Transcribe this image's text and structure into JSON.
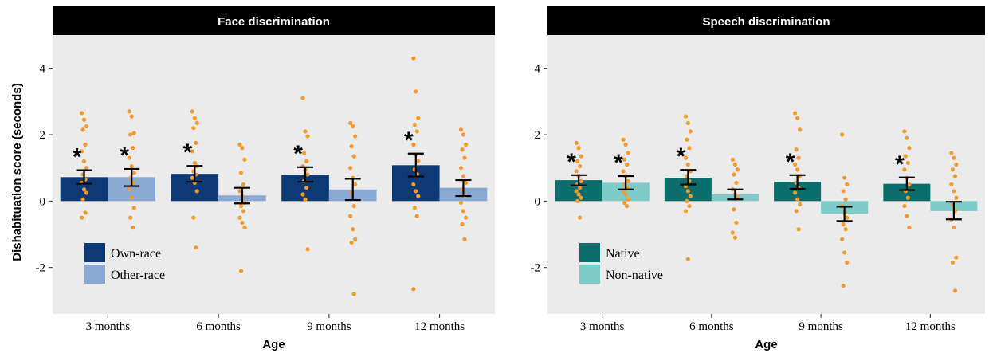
{
  "chart_data": [
    {
      "type": "bar",
      "title": "Face discrimination",
      "xlabel": "Age",
      "ylabel": "Dishabituation score (seconds)",
      "ylim": [
        -3.4,
        5.0
      ],
      "yticks": [
        -2,
        0,
        2,
        4
      ],
      "categories": [
        "3 months",
        "6 months",
        "9 months",
        "12 months"
      ],
      "legend_position": "bottom-left",
      "grid": false,
      "series": [
        {
          "name": "Own-race",
          "color": "#0d3a75",
          "values": [
            0.72,
            0.82,
            0.8,
            1.08
          ],
          "error": [
            [
              0.52,
              0.93
            ],
            [
              0.58,
              1.06
            ],
            [
              0.58,
              1.02
            ],
            [
              0.74,
              1.43
            ]
          ],
          "points": [
            [
              2.65,
              2.45,
              2.25,
              2.15,
              1.7,
              1.5,
              1.2,
              1.0,
              0.8,
              0.65,
              0.55,
              0.35,
              0.25,
              0.05,
              -0.35,
              -0.5
            ],
            [
              2.7,
              2.5,
              2.35,
              2.2,
              1.75,
              1.5,
              1.15,
              1.05,
              0.9,
              0.8,
              0.7,
              0.55,
              0.3,
              -0.5,
              -1.4
            ],
            [
              3.1,
              2.1,
              1.95,
              1.45,
              1.2,
              1.05,
              0.95,
              0.8,
              0.6,
              0.4,
              0.2,
              0.05,
              -1.45
            ],
            [
              4.3,
              3.3,
              2.5,
              2.3,
              2.1,
              1.7,
              1.4,
              1.2,
              0.95,
              0.8,
              0.5,
              0.3,
              0.15,
              -0.2,
              -0.45,
              -2.65
            ]
          ]
        },
        {
          "name": "Other-race",
          "color": "#89a9d4",
          "values": [
            0.72,
            0.17,
            0.35,
            0.4
          ],
          "error": [
            [
              0.45,
              0.97
            ],
            [
              -0.07,
              0.4
            ],
            [
              0.03,
              0.67
            ],
            [
              0.15,
              0.63
            ]
          ],
          "points": [
            [
              2.7,
              2.55,
              2.05,
              2.0,
              1.6,
              1.3,
              1.05,
              0.85,
              0.7,
              0.55,
              0.35,
              0.1,
              -0.2,
              -0.5,
              -0.8
            ],
            [
              1.7,
              1.6,
              1.25,
              0.85,
              0.5,
              0.3,
              0.15,
              -0.05,
              -0.15,
              -0.3,
              -0.5,
              -0.65,
              -0.8,
              -2.1
            ],
            [
              2.35,
              2.25,
              1.95,
              1.65,
              1.35,
              1.0,
              0.7,
              0.5,
              0.25,
              -0.15,
              -0.45,
              -0.85,
              -1.15,
              -1.25,
              -2.8
            ],
            [
              2.15,
              2.0,
              1.7,
              1.55,
              1.3,
              1.0,
              0.75,
              0.55,
              0.35,
              0.15,
              -0.05,
              -0.3,
              -0.5,
              -0.7,
              -1.15
            ]
          ]
        }
      ],
      "significance": [
        [
          "*",
          "*"
        ],
        [
          "*",
          ""
        ],
        [
          "*",
          ""
        ],
        [
          "*",
          ""
        ]
      ]
    },
    {
      "type": "bar",
      "title": "Speech discrimination",
      "xlabel": "Age",
      "ylabel": "",
      "ylim": [
        -3.4,
        5.0
      ],
      "yticks": [
        -2,
        0,
        2,
        4
      ],
      "categories": [
        "3 months",
        "6 months",
        "9 months",
        "12 months"
      ],
      "legend_position": "bottom-left",
      "grid": false,
      "series": [
        {
          "name": "Native",
          "color": "#0a6e6c",
          "values": [
            0.63,
            0.7,
            0.58,
            0.52
          ],
          "error": [
            [
              0.47,
              0.78
            ],
            [
              0.5,
              0.94
            ],
            [
              0.37,
              0.78
            ],
            [
              0.33,
              0.71
            ]
          ],
          "points": [
            [
              1.75,
              1.6,
              1.35,
              1.2,
              1.05,
              0.9,
              0.75,
              0.6,
              0.5,
              0.4,
              0.3,
              0.2,
              0.1,
              0.0,
              -0.5
            ],
            [
              2.55,
              2.35,
              2.1,
              1.85,
              1.6,
              1.3,
              1.1,
              0.9,
              0.75,
              0.6,
              0.45,
              0.3,
              0.15,
              0.0,
              -0.15,
              -0.3,
              -1.75
            ],
            [
              2.65,
              2.5,
              2.15,
              1.55,
              1.3,
              1.1,
              0.95,
              0.75,
              0.55,
              0.4,
              0.25,
              0.05,
              -0.1,
              -0.3,
              -0.85
            ],
            [
              2.1,
              1.9,
              1.6,
              1.35,
              1.15,
              0.95,
              0.7,
              0.5,
              0.3,
              0.1,
              -0.15,
              -0.45,
              -0.8
            ]
          ]
        },
        {
          "name": "Non-native",
          "color": "#7ccbc9",
          "values": [
            0.55,
            0.2,
            -0.38,
            -0.3
          ],
          "error": [
            [
              0.35,
              0.75
            ],
            [
              0.05,
              0.35
            ],
            [
              -0.6,
              -0.17
            ],
            [
              -0.55,
              -0.02
            ]
          ],
          "points": [
            [
              1.85,
              1.7,
              1.45,
              1.25,
              1.1,
              0.9,
              0.75,
              0.6,
              0.5,
              0.4,
              0.3,
              0.2,
              0.05,
              -0.05,
              -0.15
            ],
            [
              1.25,
              1.1,
              0.95,
              0.8,
              0.55,
              0.35,
              0.2,
              0.1,
              -0.25,
              -0.65,
              -0.95,
              -1.1
            ],
            [
              2.0,
              0.7,
              0.5,
              0.3,
              0.05,
              -0.15,
              -0.35,
              -0.5,
              -0.7,
              -0.85,
              -1.15,
              -1.55,
              -1.85,
              -2.55
            ],
            [
              1.45,
              1.3,
              1.1,
              0.95,
              0.75,
              0.5,
              0.3,
              0.1,
              -0.1,
              -0.3,
              -0.55,
              -0.8,
              -1.7,
              -1.85,
              -2.7
            ]
          ]
        }
      ],
      "significance": [
        [
          "*",
          "*"
        ],
        [
          "*",
          ""
        ],
        [
          "*",
          ""
        ],
        [
          "*",
          ""
        ]
      ]
    }
  ]
}
